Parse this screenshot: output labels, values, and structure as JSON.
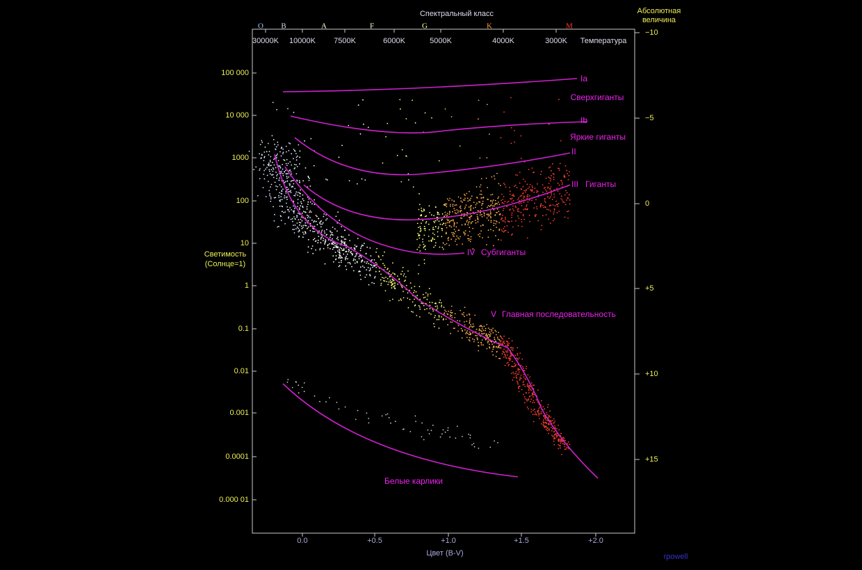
{
  "title": "Спектральный класс",
  "spectral_classes": [
    "O",
    "B",
    "A",
    "F",
    "G",
    "K",
    "M"
  ],
  "temperature_label": "Температура",
  "temperatures": [
    "30000K",
    "10000K",
    "7500K",
    "6000K",
    "5000K",
    "4000K",
    "3000K"
  ],
  "left_axis": {
    "label": [
      "Светимость",
      "(Солнце=1)"
    ],
    "ticks": [
      "100 000",
      "10 000",
      "1000",
      "100",
      "10",
      "1",
      "0.1",
      "0.01",
      "0.001",
      "0.0001",
      "0.000 01"
    ]
  },
  "right_axis": {
    "label": [
      "Абсолютная",
      "величина"
    ],
    "ticks": [
      "−10",
      "−5",
      "0",
      "+5",
      "+10",
      "+15"
    ]
  },
  "bottom_axis": {
    "label": "Цвет (B-V)",
    "ticks": [
      "0.0",
      "+0.5",
      "+1.0",
      "+1.5",
      "+2.0"
    ]
  },
  "curves": [
    "Ia",
    "Ib",
    "II",
    "III",
    "IV",
    "V"
  ],
  "regions": [
    "Сверхгиганты",
    "Яркие гиганты",
    "Гиганты",
    "Субгиганты",
    "Главная последовательность",
    "Белые карлики"
  ],
  "credit": "rpowell"
}
